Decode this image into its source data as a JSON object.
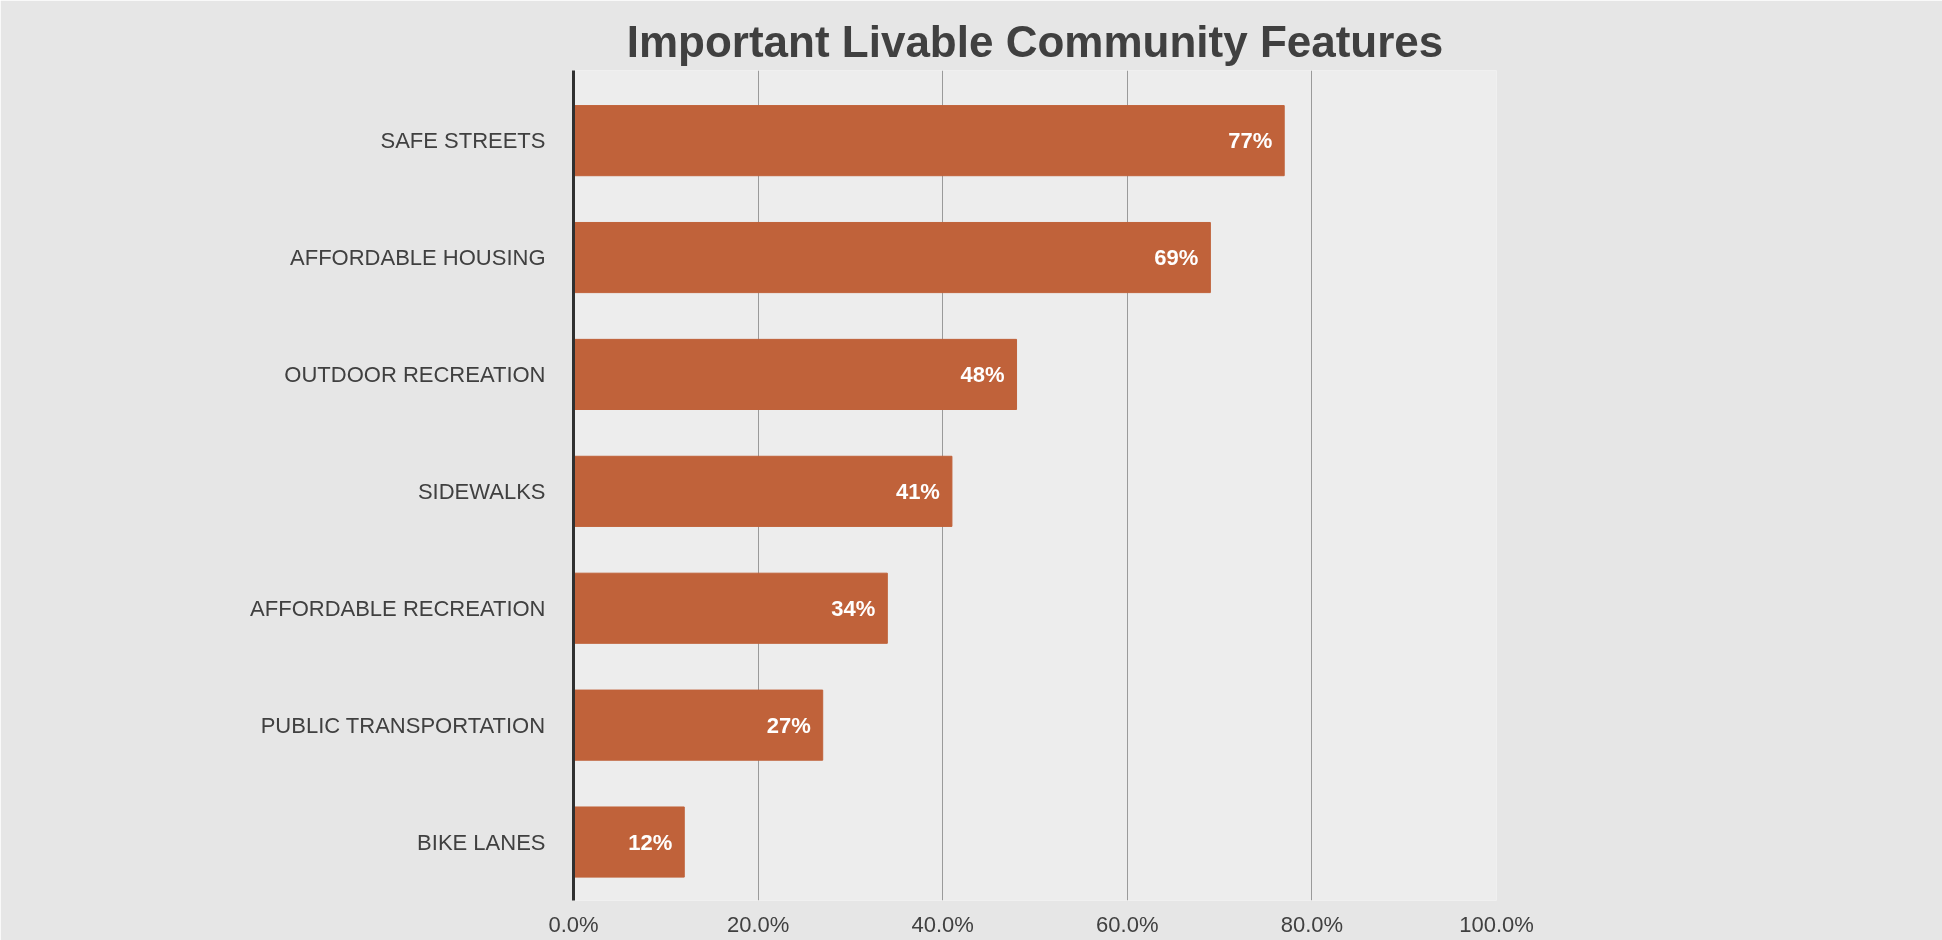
{
  "chart_data": {
    "type": "bar",
    "orientation": "horizontal",
    "title": "Important Livable Community Features",
    "categories": [
      "SAFE STREETS",
      "AFFORDABLE HOUSING",
      "OUTDOOR RECREATION",
      "SIDEWALKS",
      "AFFORDABLE RECREATION",
      "PUBLIC TRANSPORTATION",
      "BIKE LANES"
    ],
    "values": [
      77,
      69,
      48,
      41,
      34,
      27,
      12
    ],
    "value_labels": [
      "77%",
      "69%",
      "48%",
      "41%",
      "34%",
      "27%",
      "12%"
    ],
    "color": "#c0623a",
    "xlim": [
      0,
      100
    ],
    "xticks": [
      {
        "value": 0,
        "label": "0.0%"
      },
      {
        "value": 20,
        "label": "20.0%"
      },
      {
        "value": 40,
        "label": "40.0%"
      },
      {
        "value": 60,
        "label": "60.0%"
      },
      {
        "value": 80,
        "label": "80.0%"
      },
      {
        "value": 100,
        "label": "100.0%"
      }
    ],
    "grid": "x"
  }
}
